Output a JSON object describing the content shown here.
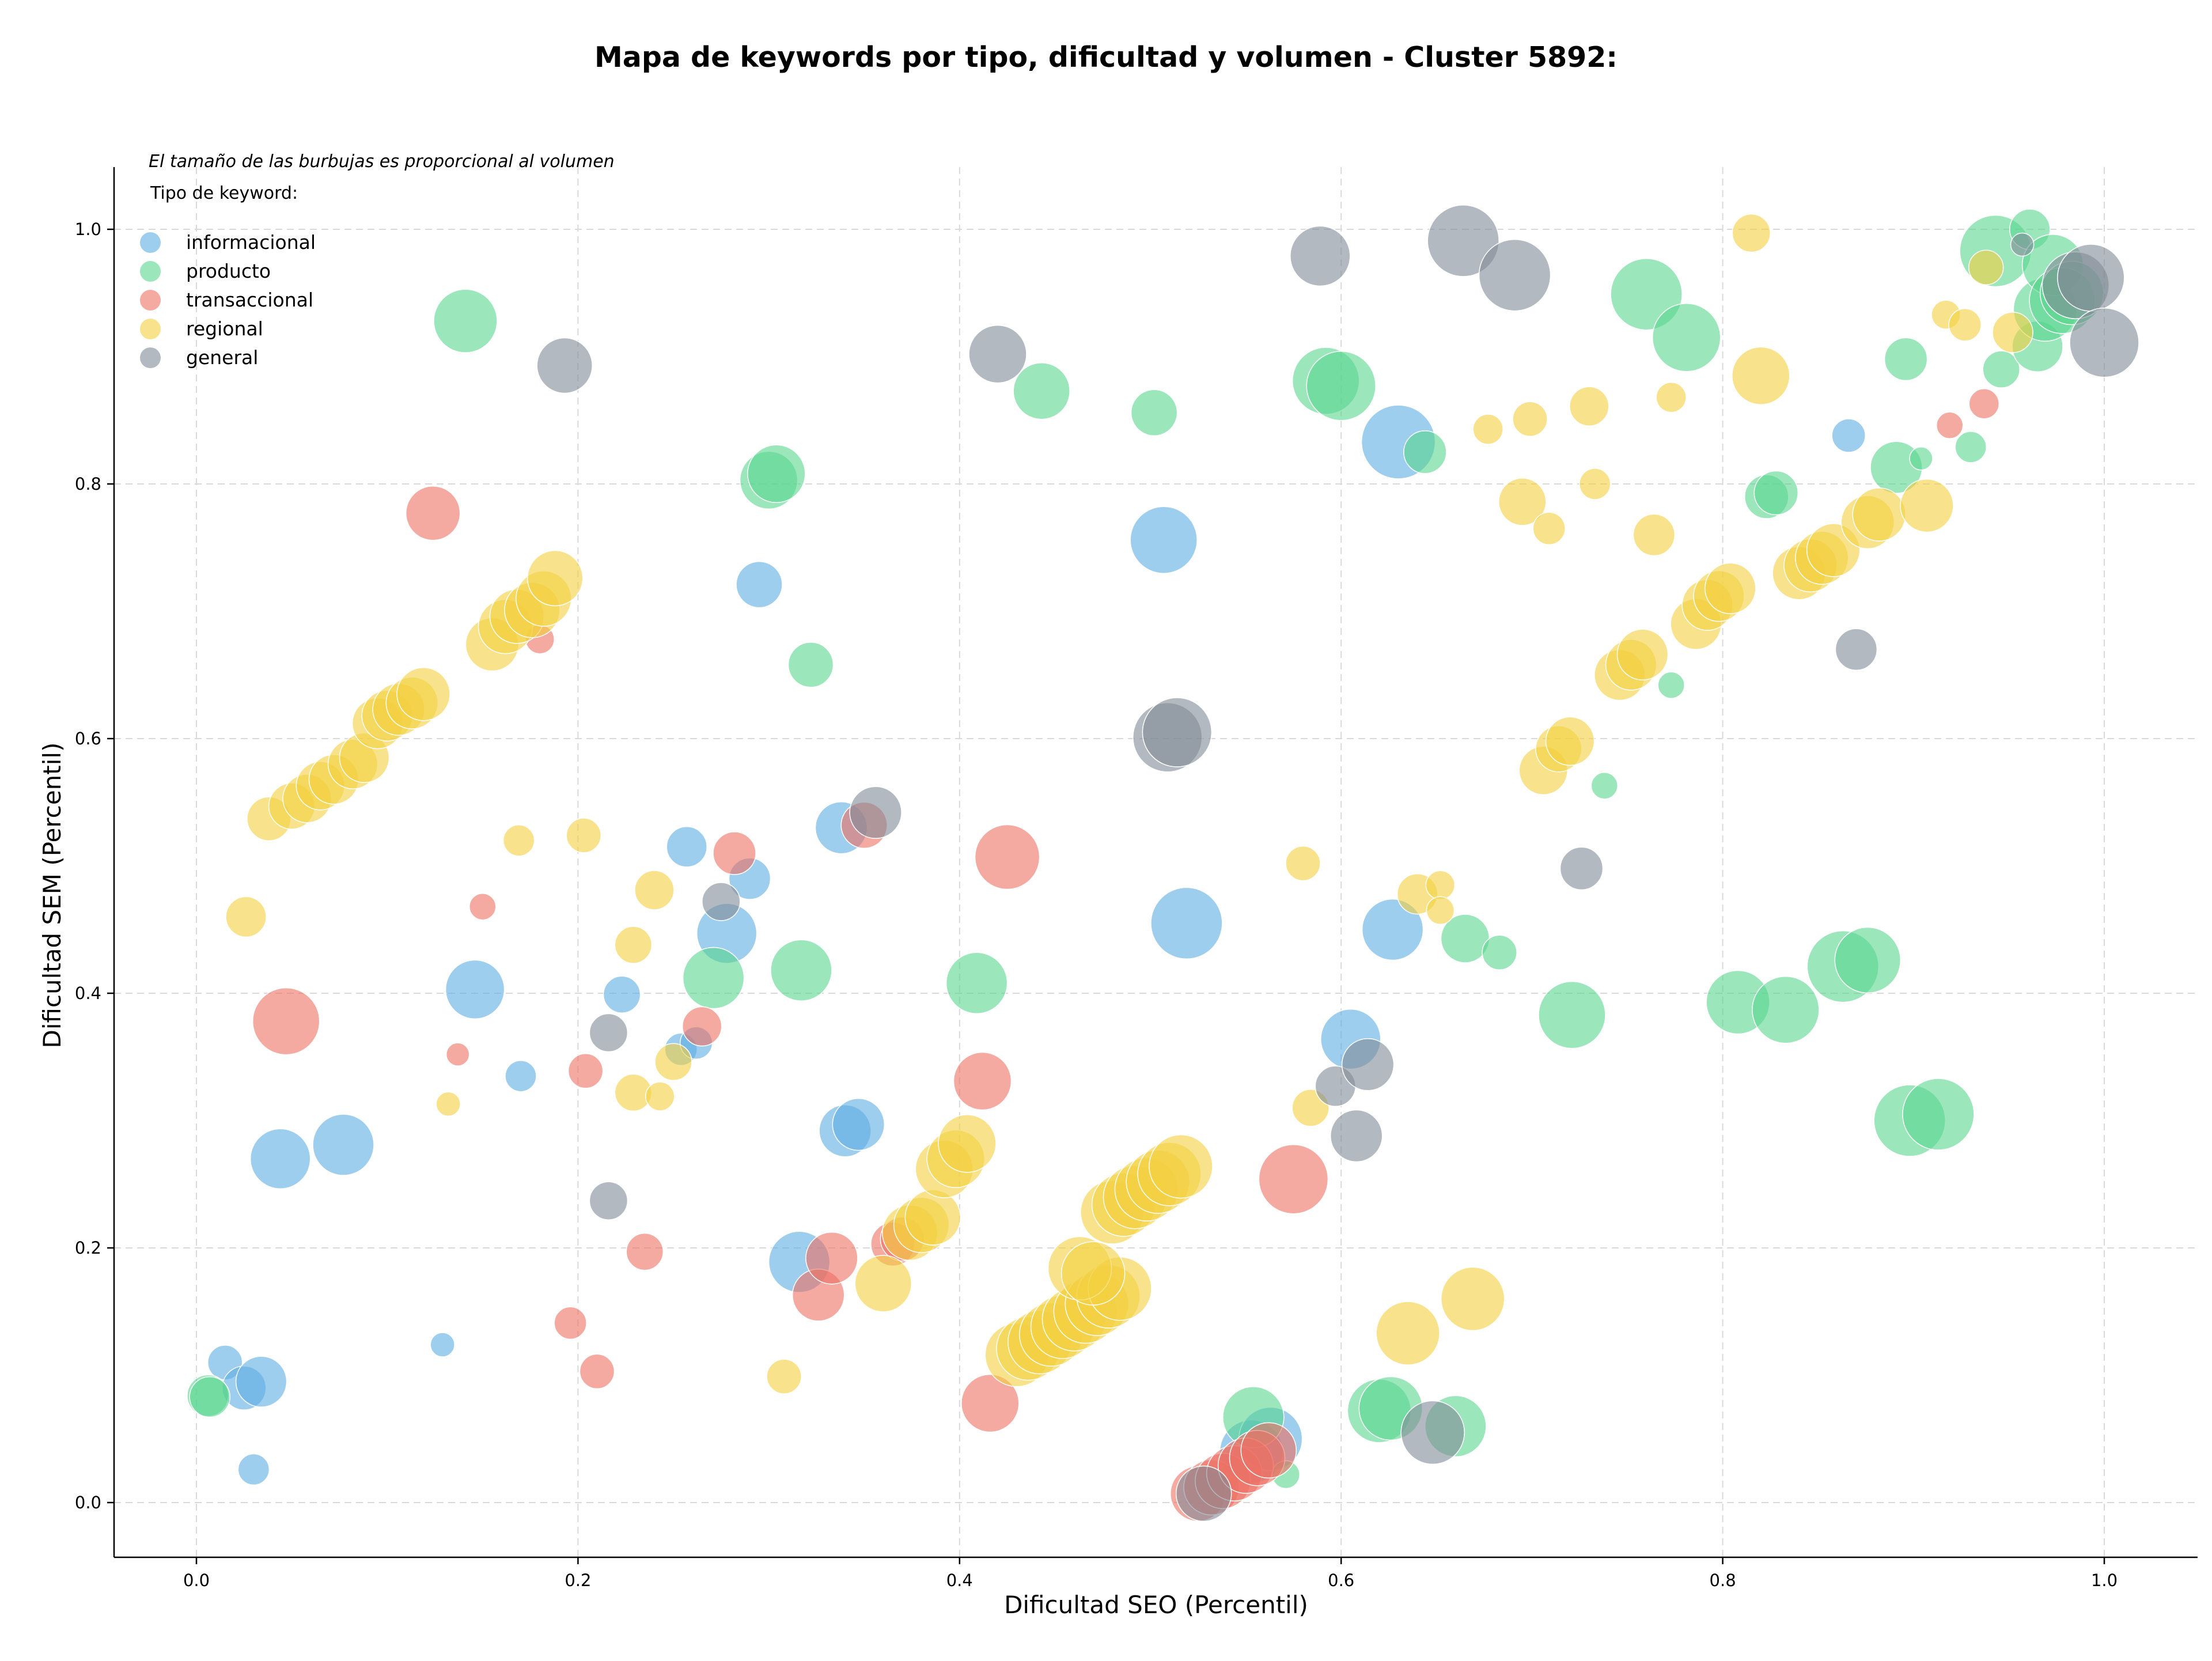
{
  "chart_data": {
    "type": "scatter",
    "title": "Mapa de keywords por tipo, dificultad y volumen - Cluster 5892:",
    "xlabel": "Dificultad SEO (Percentil)",
    "ylabel": "Dificultad SEM (Percentil)",
    "xlim": [
      -0.04,
      1.05
    ],
    "ylim": [
      -0.04,
      1.05
    ],
    "xticks": [
      0.0,
      0.2,
      0.4,
      0.6,
      0.8,
      1.0
    ],
    "yticks": [
      0.0,
      0.2,
      0.4,
      0.6,
      0.8,
      1.0
    ],
    "xtick_labels": [
      "0.0",
      "0.2",
      "0.4",
      "0.6",
      "0.8",
      "1.0"
    ],
    "ytick_labels": [
      "0.0",
      "0.2",
      "0.4",
      "0.6",
      "0.8",
      "1.0"
    ],
    "grid": true,
    "size_note": "El tamaño de las burbujas es proporcional al volumen",
    "legend_title": "Tipo de keyword:",
    "legend_position": "top-left",
    "series": [
      {
        "name": "informacional",
        "color": "#5DADE2",
        "points": [
          [
            0.015,
            0.11,
            30
          ],
          [
            0.025,
            0.09,
            38
          ],
          [
            0.034,
            0.095,
            44
          ],
          [
            0.03,
            0.026,
            27
          ],
          [
            0.044,
            0.27,
            52
          ],
          [
            0.077,
            0.281,
            53
          ],
          [
            0.129,
            0.124,
            21
          ],
          [
            0.146,
            0.403,
            51
          ],
          [
            0.17,
            0.335,
            27
          ],
          [
            0.223,
            0.399,
            32
          ],
          [
            0.254,
            0.356,
            28
          ],
          [
            0.262,
            0.361,
            28
          ],
          [
            0.257,
            0.515,
            35
          ],
          [
            0.278,
            0.447,
            52
          ],
          [
            0.29,
            0.49,
            36
          ],
          [
            0.295,
            0.721,
            40
          ],
          [
            0.316,
            0.189,
            53
          ],
          [
            0.338,
            0.53,
            45
          ],
          [
            0.34,
            0.292,
            45
          ],
          [
            0.347,
            0.297,
            45
          ],
          [
            0.507,
            0.756,
            58
          ],
          [
            0.519,
            0.455,
            62
          ],
          [
            0.63,
            0.833,
            64
          ],
          [
            0.627,
            0.45,
            53
          ],
          [
            0.605,
            0.364,
            52
          ],
          [
            0.553,
            0.04,
            55
          ],
          [
            0.563,
            0.05,
            55
          ],
          [
            0.866,
            0.838,
            29
          ]
        ]
      },
      {
        "name": "producto",
        "color": "#58D68D",
        "points": [
          [
            0.006,
            0.084,
            36
          ],
          [
            0.007,
            0.083,
            35
          ],
          [
            0.141,
            0.928,
            55
          ],
          [
            0.271,
            0.412,
            53
          ],
          [
            0.3,
            0.803,
            50
          ],
          [
            0.304,
            0.808,
            50
          ],
          [
            0.322,
            0.658,
            39
          ],
          [
            0.317,
            0.418,
            53
          ],
          [
            0.409,
            0.408,
            53
          ],
          [
            0.443,
            0.873,
            49
          ],
          [
            0.502,
            0.856,
            40
          ],
          [
            0.554,
            0.067,
            53
          ],
          [
            0.571,
            0.022,
            24
          ],
          [
            0.592,
            0.881,
            58
          ],
          [
            0.6,
            0.877,
            60
          ],
          [
            0.644,
            0.825,
            37
          ],
          [
            0.62,
            0.072,
            55
          ],
          [
            0.626,
            0.074,
            55
          ],
          [
            0.66,
            0.06,
            53
          ],
          [
            0.665,
            0.443,
            42
          ],
          [
            0.683,
            0.432,
            30
          ],
          [
            0.721,
            0.383,
            58
          ],
          [
            0.738,
            0.563,
            23
          ],
          [
            0.76,
            0.949,
            62
          ],
          [
            0.773,
            0.642,
            23
          ],
          [
            0.781,
            0.915,
            59
          ],
          [
            0.808,
            0.393,
            55
          ],
          [
            0.833,
            0.387,
            58
          ],
          [
            0.823,
            0.79,
            38
          ],
          [
            0.828,
            0.793,
            38
          ],
          [
            0.863,
            0.421,
            62
          ],
          [
            0.876,
            0.426,
            57
          ],
          [
            0.891,
            0.813,
            45
          ],
          [
            0.896,
            0.898,
            37
          ],
          [
            0.898,
            0.3,
            62
          ],
          [
            0.913,
            0.305,
            62
          ],
          [
            0.904,
            0.82,
            20
          ],
          [
            0.93,
            0.829,
            27
          ],
          [
            0.946,
            0.89,
            32
          ],
          [
            0.943,
            0.983,
            62
          ],
          [
            0.961,
            1.0,
            35
          ],
          [
            0.965,
            0.908,
            44
          ],
          [
            0.969,
            0.937,
            55
          ],
          [
            0.973,
            0.972,
            53
          ],
          [
            0.978,
            0.944,
            57
          ],
          [
            0.983,
            0.95,
            55
          ]
        ]
      },
      {
        "name": "transaccional",
        "color": "#EC7063",
        "points": [
          [
            0.047,
            0.378,
            58
          ],
          [
            0.124,
            0.777,
            47
          ],
          [
            0.137,
            0.352,
            20
          ],
          [
            0.15,
            0.468,
            23
          ],
          [
            0.18,
            0.678,
            25
          ],
          [
            0.196,
            0.141,
            28
          ],
          [
            0.204,
            0.339,
            30
          ],
          [
            0.21,
            0.103,
            30
          ],
          [
            0.235,
            0.197,
            32
          ],
          [
            0.265,
            0.374,
            34
          ],
          [
            0.282,
            0.51,
            37
          ],
          [
            0.326,
            0.163,
            45
          ],
          [
            0.333,
            0.192,
            45
          ],
          [
            0.35,
            0.532,
            40
          ],
          [
            0.365,
            0.203,
            38
          ],
          [
            0.37,
            0.207,
            38
          ],
          [
            0.412,
            0.331,
            50
          ],
          [
            0.416,
            0.078,
            50
          ],
          [
            0.425,
            0.507,
            56
          ],
          [
            0.525,
            0.007,
            48
          ],
          [
            0.532,
            0.012,
            48
          ],
          [
            0.538,
            0.017,
            48
          ],
          [
            0.544,
            0.023,
            48
          ],
          [
            0.55,
            0.029,
            48
          ],
          [
            0.556,
            0.035,
            48
          ],
          [
            0.562,
            0.041,
            48
          ],
          [
            0.575,
            0.254,
            60
          ],
          [
            0.919,
            0.846,
            23
          ],
          [
            0.937,
            0.863,
            26
          ]
        ]
      },
      {
        "name": "regional",
        "color": "#F4D03F",
        "points": [
          [
            0.026,
            0.46,
            35
          ],
          [
            0.038,
            0.537,
            38
          ],
          [
            0.05,
            0.547,
            40
          ],
          [
            0.058,
            0.553,
            42
          ],
          [
            0.065,
            0.563,
            42
          ],
          [
            0.072,
            0.568,
            43
          ],
          [
            0.082,
            0.58,
            43
          ],
          [
            0.088,
            0.585,
            43
          ],
          [
            0.095,
            0.612,
            44
          ],
          [
            0.1,
            0.618,
            44
          ],
          [
            0.106,
            0.623,
            45
          ],
          [
            0.113,
            0.628,
            45
          ],
          [
            0.119,
            0.635,
            46
          ],
          [
            0.132,
            0.313,
            21
          ],
          [
            0.155,
            0.674,
            46
          ],
          [
            0.162,
            0.688,
            47
          ],
          [
            0.168,
            0.696,
            47
          ],
          [
            0.176,
            0.701,
            48
          ],
          [
            0.182,
            0.71,
            48
          ],
          [
            0.188,
            0.726,
            48
          ],
          [
            0.169,
            0.52,
            27
          ],
          [
            0.203,
            0.524,
            30
          ],
          [
            0.229,
            0.438,
            32
          ],
          [
            0.229,
            0.322,
            32
          ],
          [
            0.24,
            0.481,
            34
          ],
          [
            0.243,
            0.319,
            25
          ],
          [
            0.25,
            0.346,
            32
          ],
          [
            0.308,
            0.099,
            30
          ],
          [
            0.36,
            0.172,
            49
          ],
          [
            0.374,
            0.212,
            48
          ],
          [
            0.38,
            0.218,
            48
          ],
          [
            0.386,
            0.224,
            48
          ],
          [
            0.392,
            0.262,
            50
          ],
          [
            0.398,
            0.27,
            50
          ],
          [
            0.404,
            0.282,
            50
          ],
          [
            0.43,
            0.116,
            55
          ],
          [
            0.436,
            0.121,
            55
          ],
          [
            0.442,
            0.126,
            55
          ],
          [
            0.448,
            0.132,
            55
          ],
          [
            0.454,
            0.138,
            55
          ],
          [
            0.46,
            0.144,
            55
          ],
          [
            0.466,
            0.15,
            55
          ],
          [
            0.472,
            0.156,
            55
          ],
          [
            0.478,
            0.162,
            55
          ],
          [
            0.484,
            0.168,
            55
          ],
          [
            0.463,
            0.184,
            55
          ],
          [
            0.47,
            0.18,
            55
          ],
          [
            0.48,
            0.228,
            55
          ],
          [
            0.486,
            0.234,
            55
          ],
          [
            0.492,
            0.24,
            55
          ],
          [
            0.498,
            0.246,
            55
          ],
          [
            0.504,
            0.252,
            55
          ],
          [
            0.51,
            0.258,
            55
          ],
          [
            0.516,
            0.264,
            55
          ],
          [
            0.58,
            0.502,
            30
          ],
          [
            0.584,
            0.31,
            32
          ],
          [
            0.635,
            0.133,
            55
          ],
          [
            0.64,
            0.478,
            35
          ],
          [
            0.652,
            0.485,
            25
          ],
          [
            0.652,
            0.465,
            24
          ],
          [
            0.669,
            0.16,
            55
          ],
          [
            0.677,
            0.843,
            26
          ],
          [
            0.695,
            0.786,
            41
          ],
          [
            0.699,
            0.851,
            30
          ],
          [
            0.709,
            0.765,
            28
          ],
          [
            0.73,
            0.861,
            34
          ],
          [
            0.733,
            0.8,
            27
          ],
          [
            0.706,
            0.575,
            42
          ],
          [
            0.714,
            0.592,
            40
          ],
          [
            0.72,
            0.598,
            42
          ],
          [
            0.746,
            0.65,
            44
          ],
          [
            0.752,
            0.658,
            44
          ],
          [
            0.758,
            0.666,
            44
          ],
          [
            0.764,
            0.76,
            36
          ],
          [
            0.773,
            0.868,
            26
          ],
          [
            0.786,
            0.69,
            44
          ],
          [
            0.792,
            0.705,
            44
          ],
          [
            0.798,
            0.712,
            44
          ],
          [
            0.804,
            0.718,
            44
          ],
          [
            0.815,
            0.997,
            33
          ],
          [
            0.82,
            0.885,
            50
          ],
          [
            0.84,
            0.73,
            46
          ],
          [
            0.846,
            0.736,
            46
          ],
          [
            0.852,
            0.742,
            46
          ],
          [
            0.858,
            0.748,
            46
          ],
          [
            0.876,
            0.77,
            46
          ],
          [
            0.882,
            0.776,
            46
          ],
          [
            0.907,
            0.783,
            46
          ],
          [
            0.917,
            0.933,
            25
          ],
          [
            0.927,
            0.925,
            28
          ],
          [
            0.938,
            0.97,
            30
          ],
          [
            0.952,
            0.919,
            35
          ]
        ]
      },
      {
        "name": "general",
        "color": "#808B96",
        "points": [
          [
            0.193,
            0.893,
            48
          ],
          [
            0.216,
            0.369,
            33
          ],
          [
            0.216,
            0.237,
            33
          ],
          [
            0.275,
            0.472,
            33
          ],
          [
            0.356,
            0.542,
            45
          ],
          [
            0.42,
            0.902,
            50
          ],
          [
            0.509,
            0.601,
            60
          ],
          [
            0.514,
            0.605,
            60
          ],
          [
            0.528,
            0.007,
            48
          ],
          [
            0.589,
            0.979,
            52
          ],
          [
            0.597,
            0.327,
            35
          ],
          [
            0.608,
            0.288,
            45
          ],
          [
            0.614,
            0.344,
            45
          ],
          [
            0.648,
            0.055,
            55
          ],
          [
            0.664,
            0.991,
            62
          ],
          [
            0.691,
            0.964,
            62
          ],
          [
            0.726,
            0.498,
            37
          ],
          [
            0.87,
            0.67,
            36
          ],
          [
            0.957,
            0.988,
            20
          ],
          [
            0.985,
            0.956,
            58
          ],
          [
            0.993,
            0.962,
            58
          ],
          [
            1.0,
            0.911,
            60
          ]
        ]
      }
    ]
  }
}
